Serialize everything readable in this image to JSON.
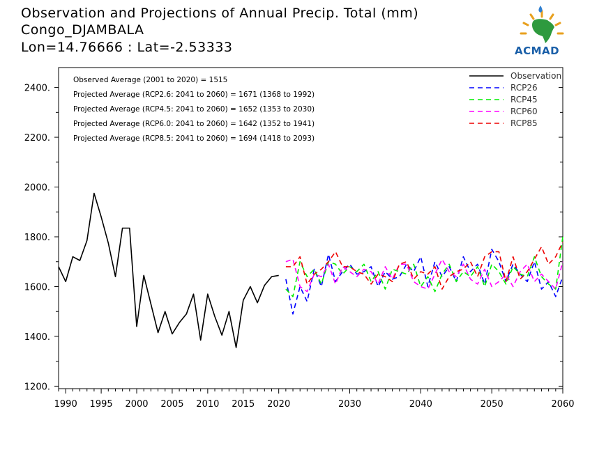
{
  "header": {
    "title": "Observation and Projections of Annual Precip. Total (mm)",
    "location": "Congo_DJAMBALA",
    "coords": "Lon=14.76666 : Lat=-2.53333"
  },
  "logo": {
    "text": "ACMAD"
  },
  "colors": {
    "Observation": "#000000",
    "RCP26": "#0000ff",
    "RCP45": "#00ee00",
    "RCP60": "#ff00ff",
    "RCP85": "#ee0000"
  },
  "chart_data": {
    "type": "line",
    "title": "Observation and Projections of Annual Precip. Total (mm)",
    "xlim": [
      1989,
      2060
    ],
    "ylim": [
      1190,
      2480
    ],
    "xticks": [
      1990,
      1995,
      2000,
      2005,
      2010,
      2015,
      2020,
      2030,
      2040,
      2050,
      2060
    ],
    "yticks": [
      1200,
      1400,
      1600,
      1800,
      2000,
      2200,
      2400
    ],
    "ytick_labels": [
      "1200.",
      "1400.",
      "1600.",
      "1800.",
      "2000.",
      "2200.",
      "2400."
    ],
    "legend_placement": "top-right",
    "annotations": [
      "Observed Average (2001 to 2020) = 1515",
      "Projected Average (RCP2.6: 2041 to 2060) = 1671 (1368 to 1992)",
      "Projected Average (RCP4.5: 2041 to 2060) = 1652 (1353 to 2030)",
      "Projected Average (RCP6.0: 2041 to 2060) = 1642 (1352 to 1941)",
      "Projected Average (RCP8.5: 2041 to 2060) = 1694 (1418 to 2093)"
    ],
    "series": [
      {
        "name": "Observation",
        "style": "solid",
        "x": [
          1989,
          1990,
          1991,
          1992,
          1993,
          1994,
          1995,
          1996,
          1997,
          1998,
          1999,
          2000,
          2001,
          2002,
          2003,
          2004,
          2005,
          2006,
          2007,
          2008,
          2009,
          2010,
          2011,
          2012,
          2013,
          2014,
          2015,
          2016,
          2017,
          2018,
          2019,
          2020
        ],
        "values": [
          1680,
          1620,
          1720,
          1705,
          1785,
          1975,
          1880,
          1775,
          1640,
          1835,
          1835,
          1440,
          1645,
          1530,
          1415,
          1500,
          1410,
          1455,
          1490,
          1570,
          1385,
          1570,
          1480,
          1405,
          1500,
          1355,
          1545,
          1600,
          1535,
          1605,
          1640,
          1645
        ]
      },
      {
        "name": "RCP26",
        "style": "dashed",
        "x": [
          2021,
          2022,
          2023,
          2024,
          2025,
          2026,
          2027,
          2028,
          2029,
          2030,
          2031,
          2032,
          2033,
          2034,
          2035,
          2036,
          2037,
          2038,
          2039,
          2040,
          2041,
          2042,
          2043,
          2044,
          2045,
          2046,
          2047,
          2048,
          2049,
          2050,
          2051,
          2052,
          2053,
          2054,
          2055,
          2056,
          2057,
          2058,
          2059,
          2060
        ],
        "values": [
          1630,
          1490,
          1600,
          1540,
          1670,
          1600,
          1730,
          1620,
          1660,
          1690,
          1650,
          1660,
          1680,
          1600,
          1660,
          1630,
          1640,
          1690,
          1660,
          1720,
          1600,
          1700,
          1640,
          1680,
          1620,
          1720,
          1660,
          1690,
          1610,
          1750,
          1700,
          1620,
          1690,
          1650,
          1620,
          1700,
          1590,
          1620,
          1560,
          1640
        ]
      },
      {
        "name": "RCP45",
        "style": "dashed",
        "x": [
          2021,
          2022,
          2023,
          2024,
          2025,
          2026,
          2027,
          2028,
          2029,
          2030,
          2031,
          2032,
          2033,
          2034,
          2035,
          2036,
          2037,
          2038,
          2039,
          2040,
          2041,
          2042,
          2043,
          2044,
          2045,
          2046,
          2047,
          2048,
          2049,
          2050,
          2051,
          2052,
          2053,
          2054,
          2055,
          2056,
          2057,
          2058,
          2059,
          2060
        ],
        "values": [
          1590,
          1560,
          1700,
          1640,
          1670,
          1610,
          1700,
          1690,
          1650,
          1680,
          1660,
          1690,
          1620,
          1660,
          1590,
          1670,
          1660,
          1650,
          1690,
          1600,
          1640,
          1580,
          1650,
          1690,
          1620,
          1660,
          1640,
          1680,
          1600,
          1690,
          1660,
          1610,
          1680,
          1650,
          1640,
          1720,
          1640,
          1610,
          1590,
          1800
        ]
      },
      {
        "name": "RCP60",
        "style": "dashed",
        "x": [
          2021,
          2022,
          2023,
          2024,
          2025,
          2026,
          2027,
          2028,
          2029,
          2030,
          2031,
          2032,
          2033,
          2034,
          2035,
          2036,
          2037,
          2038,
          2039,
          2040,
          2041,
          2042,
          2043,
          2044,
          2045,
          2046,
          2047,
          2048,
          2049,
          2050,
          2051,
          2052,
          2053,
          2054,
          2055,
          2056,
          2057,
          2058,
          2059,
          2060
        ],
        "values": [
          1700,
          1710,
          1600,
          1580,
          1650,
          1640,
          1690,
          1610,
          1680,
          1660,
          1640,
          1670,
          1660,
          1610,
          1680,
          1630,
          1690,
          1690,
          1620,
          1600,
          1590,
          1650,
          1710,
          1660,
          1640,
          1690,
          1630,
          1610,
          1670,
          1600,
          1620,
          1650,
          1600,
          1660,
          1690,
          1620,
          1650,
          1620,
          1590,
          1700
        ]
      },
      {
        "name": "RCP85",
        "style": "dashed",
        "x": [
          2021,
          2022,
          2023,
          2024,
          2025,
          2026,
          2027,
          2028,
          2029,
          2030,
          2031,
          2032,
          2033,
          2034,
          2035,
          2036,
          2037,
          2038,
          2039,
          2040,
          2041,
          2042,
          2043,
          2044,
          2045,
          2046,
          2047,
          2048,
          2049,
          2050,
          2051,
          2052,
          2053,
          2054,
          2055,
          2056,
          2057,
          2058,
          2059,
          2060
        ],
        "values": [
          1680,
          1680,
          1720,
          1610,
          1650,
          1670,
          1700,
          1740,
          1680,
          1680,
          1660,
          1650,
          1610,
          1650,
          1640,
          1620,
          1690,
          1700,
          1630,
          1660,
          1650,
          1680,
          1590,
          1640,
          1660,
          1670,
          1700,
          1640,
          1720,
          1740,
          1740,
          1620,
          1720,
          1630,
          1660,
          1710,
          1760,
          1690,
          1720,
          1780
        ]
      }
    ]
  }
}
